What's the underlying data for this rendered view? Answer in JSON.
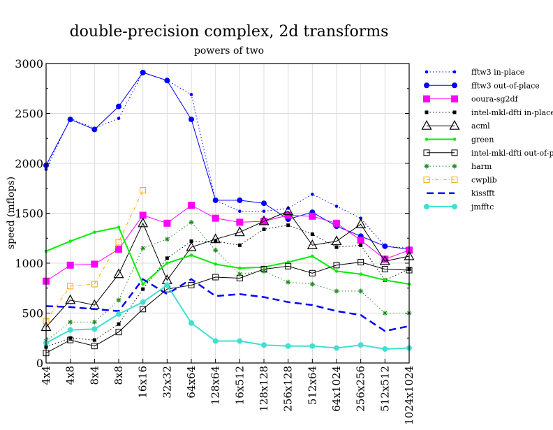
{
  "chart_data": {
    "type": "line",
    "title": "double-precision complex, 2d transforms",
    "subtitle": "powers of two",
    "xlabel": "",
    "ylabel": "speed (mflops)",
    "ylim": [
      0,
      3000
    ],
    "yticks": [
      "0",
      "500",
      "1000",
      "1500",
      "2000",
      "2500",
      "3000"
    ],
    "grid": true,
    "legend_position": "right",
    "categories": [
      "4x4",
      "4x8",
      "8x4",
      "8x8",
      "16x16",
      "32x32",
      "64x64",
      "128x64",
      "16x512",
      "128x128",
      "256x128",
      "512x64",
      "64x1024",
      "256x256",
      "512x512",
      "1024x1024"
    ],
    "series": [
      {
        "name": "fftw3 in-place",
        "color": "#0000ff",
        "style": "dotted",
        "marker": "small-dot",
        "values": [
          1940,
          2450,
          2350,
          2450,
          2910,
          2830,
          2690,
          1630,
          1520,
          1520,
          1550,
          1690,
          1570,
          1450,
          1170,
          1150
        ]
      },
      {
        "name": "fftw3 out-of-place",
        "color": "#0000ff",
        "style": "solid",
        "marker": "dot",
        "values": [
          1980,
          2440,
          2340,
          2570,
          2910,
          2830,
          2440,
          1630,
          1630,
          1600,
          1440,
          1510,
          1370,
          1270,
          1170,
          1140
        ]
      },
      {
        "name": "ooura-sg2df",
        "color": "#ff00ff",
        "style": "solid",
        "marker": "filled-square",
        "values": [
          820,
          980,
          990,
          1140,
          1480,
          1400,
          1580,
          1450,
          1410,
          1420,
          1480,
          1470,
          1400,
          1230,
          1040,
          1130
        ]
      },
      {
        "name": "intel-mkl-dfti in-place",
        "color": "#000000",
        "style": "dotted",
        "marker": "small-filled-square",
        "values": [
          160,
          250,
          230,
          390,
          740,
          1050,
          1220,
          1220,
          1180,
          1340,
          1380,
          1290,
          1160,
          1180,
          830,
          940
        ]
      },
      {
        "name": "acml",
        "color": "#000000",
        "style": "solid",
        "marker": "open-triangle",
        "values": [
          360,
          630,
          580,
          890,
          1400,
          830,
          1160,
          1240,
          1310,
          1420,
          1520,
          1180,
          1220,
          1390,
          1020,
          1070
        ]
      },
      {
        "name": "green",
        "color": "#00ee00",
        "style": "solid-thick",
        "marker": "small-dot",
        "values": [
          1120,
          1220,
          1310,
          1360,
          790,
          1000,
          1080,
          990,
          950,
          960,
          1010,
          1070,
          920,
          890,
          830,
          790
        ]
      },
      {
        "name": "intel-mkl-dfti out-of-place",
        "color": "#000000",
        "style": "solid",
        "marker": "open-square",
        "values": [
          100,
          230,
          170,
          310,
          540,
          740,
          780,
          860,
          850,
          940,
          970,
          900,
          980,
          1010,
          940,
          930
        ]
      },
      {
        "name": "harm",
        "color": "#228b22",
        "style": "dotted",
        "marker": "star",
        "values": [
          220,
          410,
          410,
          630,
          1150,
          1240,
          1410,
          1130,
          890,
          920,
          810,
          790,
          720,
          720,
          500,
          500
        ]
      },
      {
        "name": "cwplib",
        "color": "#ffa500",
        "style": "dashdot",
        "marker": "open-square",
        "values": [
          420,
          770,
          790,
          1210,
          1730,
          null,
          null,
          null,
          null,
          null,
          null,
          null,
          null,
          null,
          null,
          null
        ]
      },
      {
        "name": "kissfft",
        "color": "#0000ff",
        "style": "dashed",
        "marker": "none",
        "values": [
          570,
          560,
          540,
          520,
          840,
          690,
          840,
          670,
          690,
          660,
          610,
          580,
          520,
          480,
          320,
          370
        ]
      },
      {
        "name": "jmfftc",
        "color": "#40e0d0",
        "style": "solid-thick",
        "marker": "dot",
        "values": [
          200,
          330,
          340,
          490,
          610,
          780,
          400,
          220,
          220,
          180,
          170,
          170,
          150,
          180,
          140,
          150
        ]
      }
    ]
  }
}
